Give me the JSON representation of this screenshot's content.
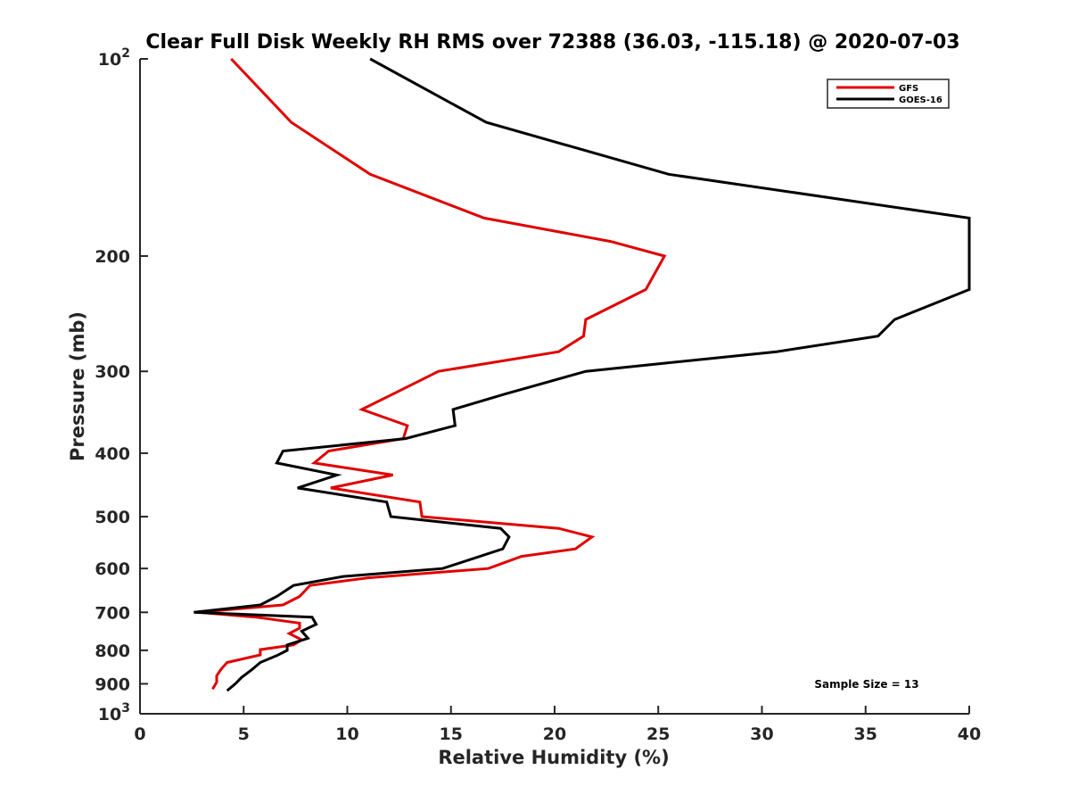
{
  "chart_data": {
    "type": "line",
    "title": "Clear Full Disk Weekly RH RMS over 72388 (36.03, -115.18) @ 2020-07-03",
    "xlabel": "Relative Humidity (%)",
    "ylabel": "Pressure (mb)",
    "xlim": [
      0,
      40
    ],
    "ylim": [
      100,
      1000
    ],
    "yscale": "log",
    "y_reversed": true,
    "grid": false,
    "legend_position": "top-right",
    "x_ticks": [
      "0",
      "5",
      "10",
      "15",
      "20",
      "25",
      "30",
      "35",
      "40"
    ],
    "y_ticks": [
      {
        "value": 100,
        "base": "10",
        "exp": "2"
      },
      {
        "value": 200,
        "label": "200"
      },
      {
        "value": 300,
        "label": "300"
      },
      {
        "value": 400,
        "label": "400"
      },
      {
        "value": 500,
        "label": "500"
      },
      {
        "value": 600,
        "label": "600"
      },
      {
        "value": 700,
        "label": "700"
      },
      {
        "value": 800,
        "label": "800"
      },
      {
        "value": 900,
        "label": "900"
      },
      {
        "value": 1000,
        "base": "10",
        "exp": "3"
      }
    ],
    "series": [
      {
        "name": "GFS",
        "color": "#e00000",
        "points": [
          [
            4.4,
            100
          ],
          [
            7.3,
            125
          ],
          [
            11.1,
            150
          ],
          [
            16.6,
            175
          ],
          [
            22.7,
            190
          ],
          [
            25.3,
            200
          ],
          [
            24.4,
            225
          ],
          [
            21.5,
            250
          ],
          [
            21.4,
            265
          ],
          [
            20.2,
            280
          ],
          [
            14.4,
            300
          ],
          [
            12.2,
            325
          ],
          [
            10.7,
            343
          ],
          [
            12.9,
            363
          ],
          [
            12.7,
            380
          ],
          [
            9.1,
            397
          ],
          [
            8.4,
            414
          ],
          [
            12.2,
            432
          ],
          [
            9.2,
            452
          ],
          [
            13.5,
            475
          ],
          [
            13.6,
            500
          ],
          [
            20.2,
            521
          ],
          [
            21.8,
            537
          ],
          [
            21.0,
            560
          ],
          [
            18.4,
            575
          ],
          [
            16.8,
            600
          ],
          [
            11.0,
            620
          ],
          [
            8.2,
            637
          ],
          [
            7.7,
            662
          ],
          [
            6.9,
            682
          ],
          [
            2.8,
            700
          ],
          [
            5.6,
            712
          ],
          [
            7.7,
            727
          ],
          [
            7.7,
            740
          ],
          [
            7.2,
            754
          ],
          [
            7.8,
            771
          ],
          [
            7.4,
            785
          ],
          [
            5.8,
            798
          ],
          [
            5.8,
            813
          ],
          [
            4.2,
            835
          ],
          [
            3.9,
            856
          ],
          [
            3.7,
            875
          ],
          [
            3.7,
            895
          ],
          [
            3.5,
            917
          ]
        ]
      },
      {
        "name": "GOES-16",
        "color": "#000000",
        "points": [
          [
            11.1,
            100
          ],
          [
            16.7,
            125
          ],
          [
            25.5,
            150
          ],
          [
            40.0,
            175
          ],
          [
            40.0,
            225
          ],
          [
            36.4,
            250
          ],
          [
            35.6,
            265
          ],
          [
            30.7,
            280
          ],
          [
            21.5,
            300
          ],
          [
            17.6,
            325
          ],
          [
            15.1,
            343
          ],
          [
            15.2,
            363
          ],
          [
            12.8,
            380
          ],
          [
            6.9,
            397
          ],
          [
            6.6,
            414
          ],
          [
            9.5,
            432
          ],
          [
            7.6,
            452
          ],
          [
            11.9,
            475
          ],
          [
            12.1,
            500
          ],
          [
            17.4,
            521
          ],
          [
            17.8,
            537
          ],
          [
            17.5,
            560
          ],
          [
            14.6,
            600
          ],
          [
            9.8,
            617
          ],
          [
            7.4,
            637
          ],
          [
            6.6,
            662
          ],
          [
            5.8,
            682
          ],
          [
            2.6,
            700
          ],
          [
            8.3,
            712
          ],
          [
            8.5,
            730
          ],
          [
            7.8,
            748
          ],
          [
            8.1,
            767
          ],
          [
            7.1,
            785
          ],
          [
            7.1,
            800
          ],
          [
            6.6,
            815
          ],
          [
            5.8,
            835
          ],
          [
            5.4,
            856
          ],
          [
            4.9,
            880
          ],
          [
            4.6,
            900
          ],
          [
            4.2,
            922
          ]
        ]
      }
    ],
    "annotations": [
      {
        "text": "Sample Size = 13",
        "position": "bottom-right"
      }
    ]
  }
}
